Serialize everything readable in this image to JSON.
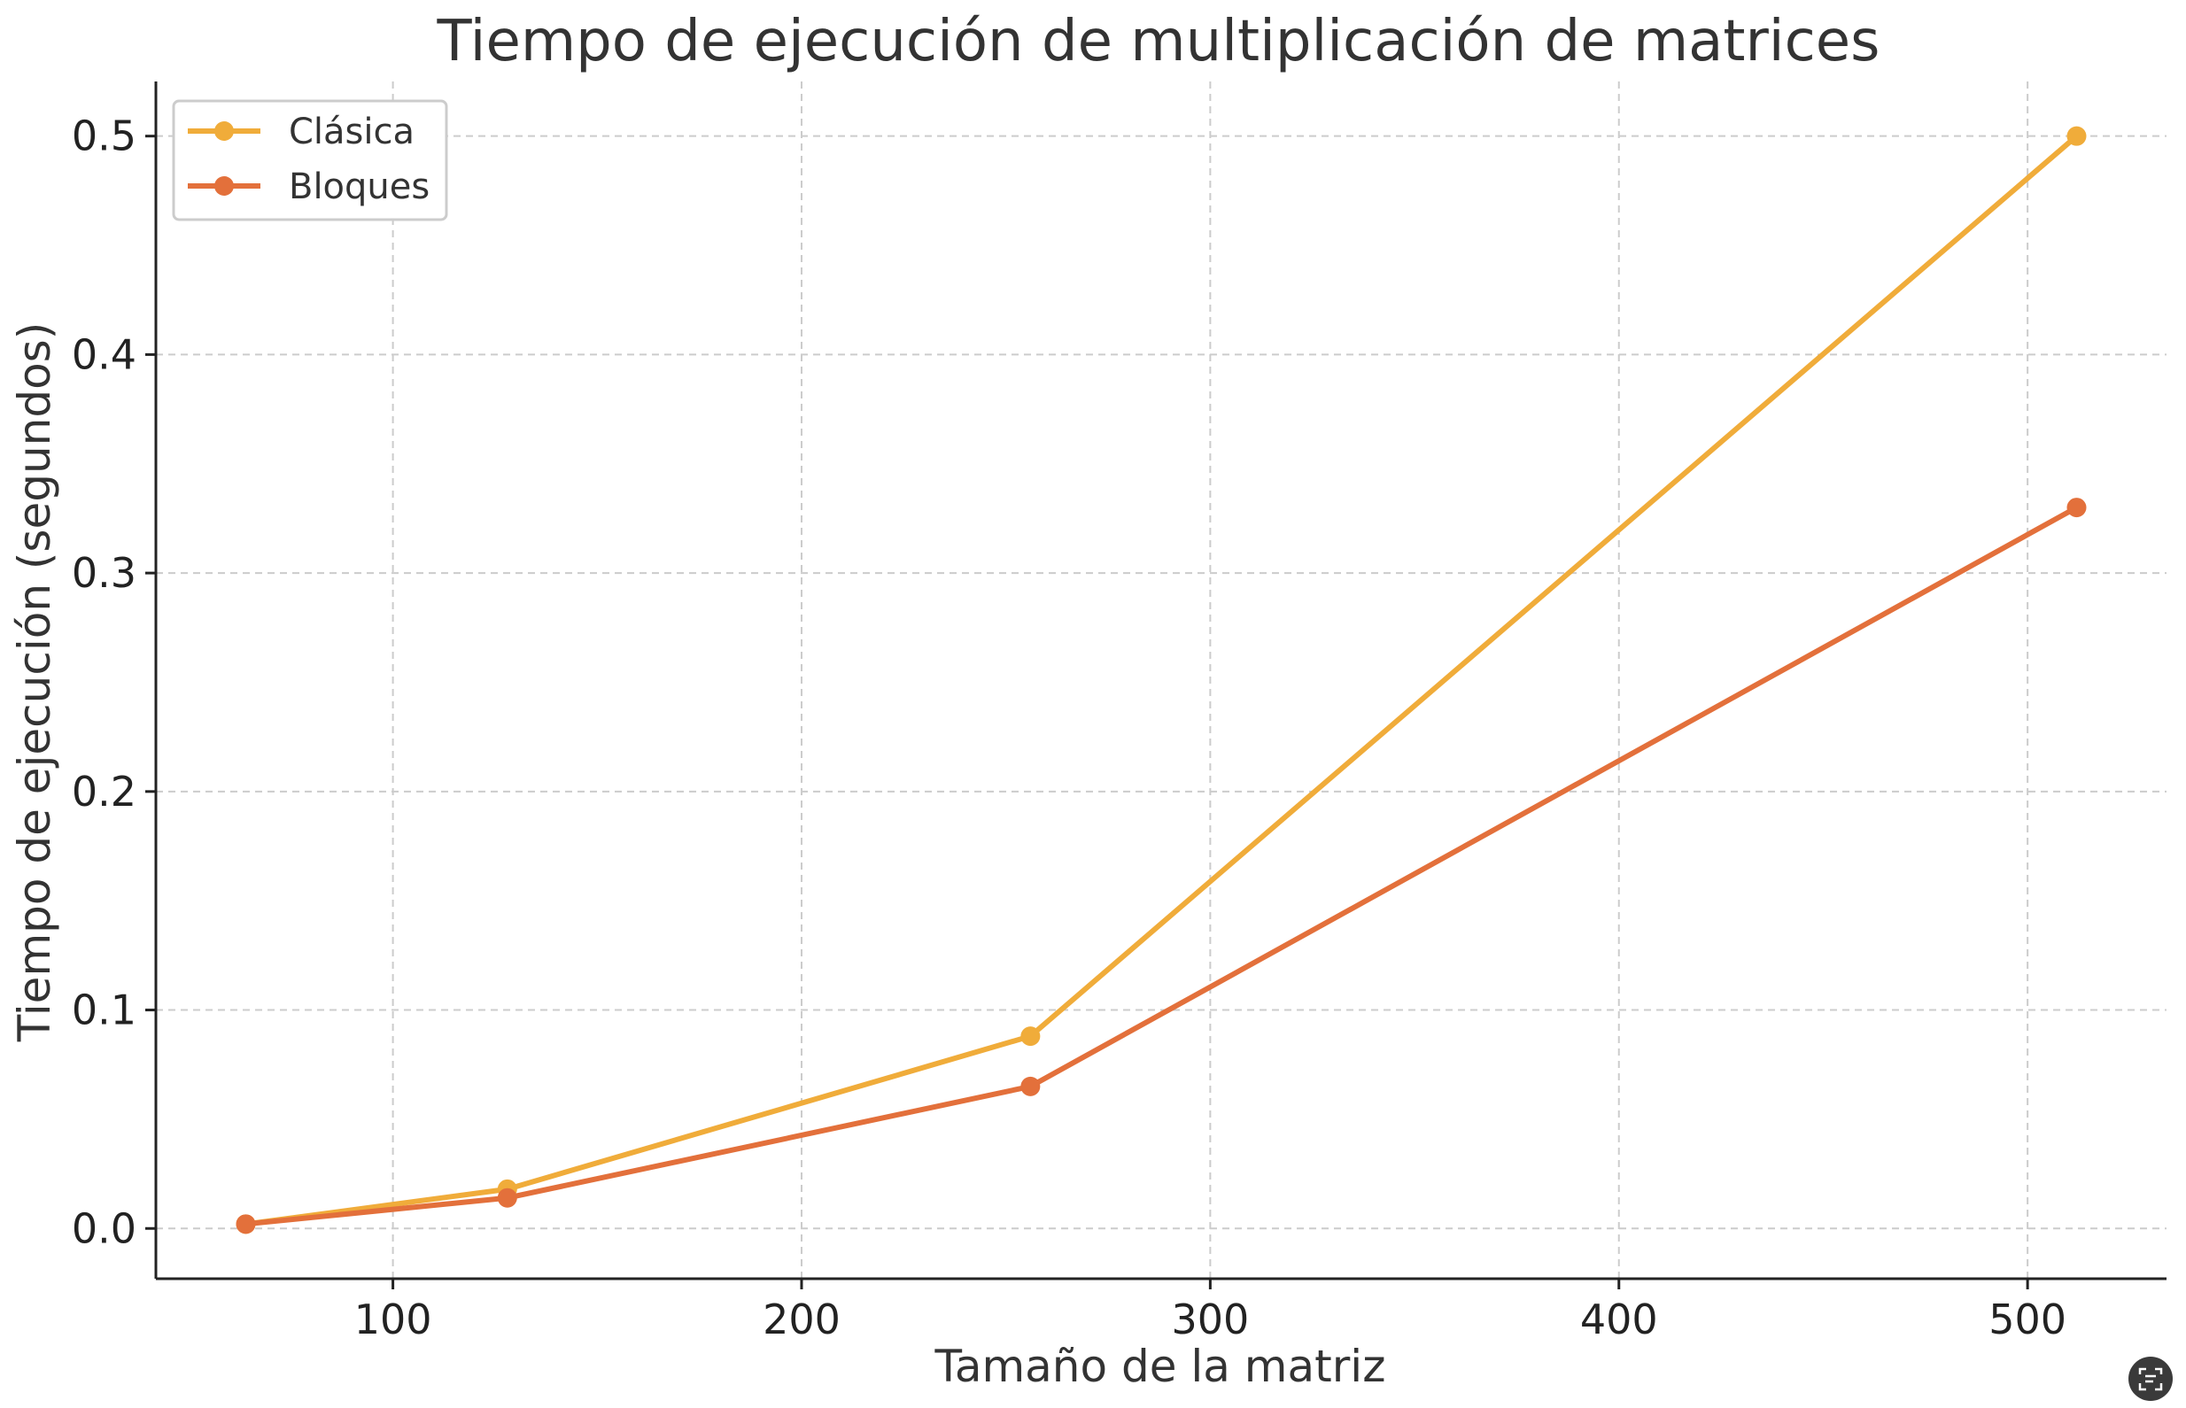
{
  "chart_data": {
    "type": "line",
    "title": "Tiempo de ejecución de multiplicación de matrices",
    "xlabel": "Tamaño de la matriz",
    "ylabel": "Tiempo de ejecución (segundos)",
    "xlim": [
      42,
      534
    ],
    "ylim": [
      -0.023,
      0.525
    ],
    "xticks": [
      100,
      200,
      300,
      400,
      500
    ],
    "yticks": [
      0.0,
      0.1,
      0.2,
      0.3,
      0.4,
      0.5
    ],
    "xtick_labels": [
      "100",
      "200",
      "300",
      "400",
      "500"
    ],
    "ytick_labels": [
      "0.0",
      "0.1",
      "0.2",
      "0.3",
      "0.4",
      "0.5"
    ],
    "grid": true,
    "legend_position": "top-left",
    "x": [
      64,
      128,
      256,
      512
    ],
    "series": [
      {
        "name": "Clásica",
        "color": "#F0AC3A",
        "values": [
          0.002,
          0.018,
          0.088,
          0.5
        ]
      },
      {
        "name": "Bloques",
        "color": "#E3703B",
        "values": [
          0.002,
          0.014,
          0.065,
          0.33
        ]
      }
    ]
  },
  "ui": {
    "lens_icon": "screen-capture-icon"
  }
}
